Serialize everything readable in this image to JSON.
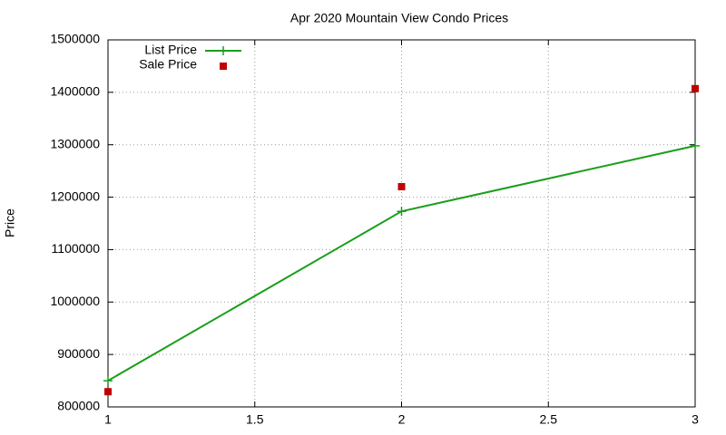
{
  "chart_data": {
    "type": "line",
    "title": "Apr 2020 Mountain View Condo Prices",
    "ylabel": "Price",
    "x": [
      1,
      2,
      3
    ],
    "series": [
      {
        "name": "List Price",
        "color": "#1a9e1a",
        "style": "linespoints",
        "values": [
          850000,
          1173000,
          1298000
        ]
      },
      {
        "name": "Sale Price",
        "color": "#c00000",
        "style": "points",
        "values": [
          829000,
          1220000,
          1407000
        ]
      }
    ],
    "xlim": [
      1,
      3
    ],
    "xticks": [
      1,
      1.5,
      2,
      2.5,
      3
    ],
    "ylim": [
      800000,
      1500000
    ],
    "yticks": [
      800000,
      900000,
      1000000,
      1100000,
      1200000,
      1300000,
      1400000,
      1500000
    ],
    "grid": true,
    "legend": "top-left"
  }
}
